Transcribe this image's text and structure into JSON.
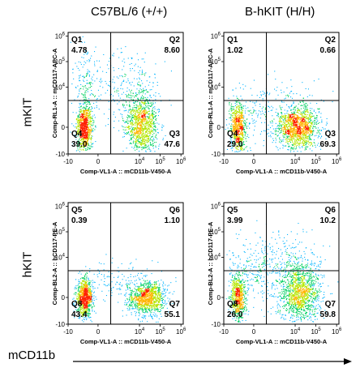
{
  "column_titles": [
    "C57BL/6 (+/+)",
    "B-hKIT (H/H)"
  ],
  "row_titles": [
    "mKIT",
    "hKIT"
  ],
  "bottom_label": "mCD11b",
  "chart_data": [
    {
      "type": "scatter",
      "sample": "C57BL/6 (+/+)",
      "marker": "mKIT",
      "xlabel": "Comp-VL1-A :: mCD11b-V450-A",
      "ylabel": "Comp-RL1-A :: mCD117-APC-A",
      "x_ticks": [
        "-10",
        "0",
        "10^4",
        "10^5",
        "10^6"
      ],
      "y_ticks": [
        "-10",
        "0",
        "10^4",
        "10^5",
        "10^6"
      ],
      "quadrants": [
        {
          "name": "Q1",
          "value": "4.78"
        },
        {
          "name": "Q2",
          "value": "8.60"
        },
        {
          "name": "Q3",
          "value": "47.6"
        },
        {
          "name": "Q4",
          "value": "39.0"
        }
      ]
    },
    {
      "type": "scatter",
      "sample": "B-hKIT (H/H)",
      "marker": "mKIT",
      "xlabel": "Comp-VL1-A :: mCD11b-V450-A",
      "ylabel": "Comp-RL1-A :: mCD117-APC-A",
      "x_ticks": [
        "-10",
        "0",
        "10^4",
        "10^5",
        "10^6"
      ],
      "y_ticks": [
        "-10",
        "0",
        "10^4",
        "10^5",
        "10^6"
      ],
      "quadrants": [
        {
          "name": "Q1",
          "value": "1.02"
        },
        {
          "name": "Q2",
          "value": "0.66"
        },
        {
          "name": "Q3",
          "value": "69.3"
        },
        {
          "name": "Q4",
          "value": "29.0"
        }
      ]
    },
    {
      "type": "scatter",
      "sample": "C57BL/6 (+/+)",
      "marker": "hKIT",
      "xlabel": "Comp-VL1-A :: mCD11b-V450-A",
      "ylabel": "Comp-BL2-A :: hCD117-PE-A",
      "x_ticks": [
        "-10",
        "0",
        "10^4",
        "10^5",
        "10^6"
      ],
      "y_ticks": [
        "-10",
        "0",
        "10^4",
        "10^5",
        "10^6"
      ],
      "quadrants": [
        {
          "name": "Q5",
          "value": "0.39"
        },
        {
          "name": "Q6",
          "value": "1.10"
        },
        {
          "name": "Q7",
          "value": "55.1"
        },
        {
          "name": "Q8",
          "value": "43.4"
        }
      ]
    },
    {
      "type": "scatter",
      "sample": "B-hKIT (H/H)",
      "marker": "hKIT",
      "xlabel": "Comp-VL1-A :: mCD11b-V450-A",
      "ylabel": "Comp-BL2-A :: hCD117-PE-A",
      "x_ticks": [
        "-10",
        "0",
        "10^4",
        "10^5",
        "10^6"
      ],
      "y_ticks": [
        "-10",
        "0",
        "10^4",
        "10^5",
        "10^6"
      ],
      "quadrants": [
        {
          "name": "Q5",
          "value": "3.99"
        },
        {
          "name": "Q6",
          "value": "10.2"
        },
        {
          "name": "Q7",
          "value": "59.8"
        },
        {
          "name": "Q8",
          "value": "26.0"
        }
      ]
    }
  ]
}
